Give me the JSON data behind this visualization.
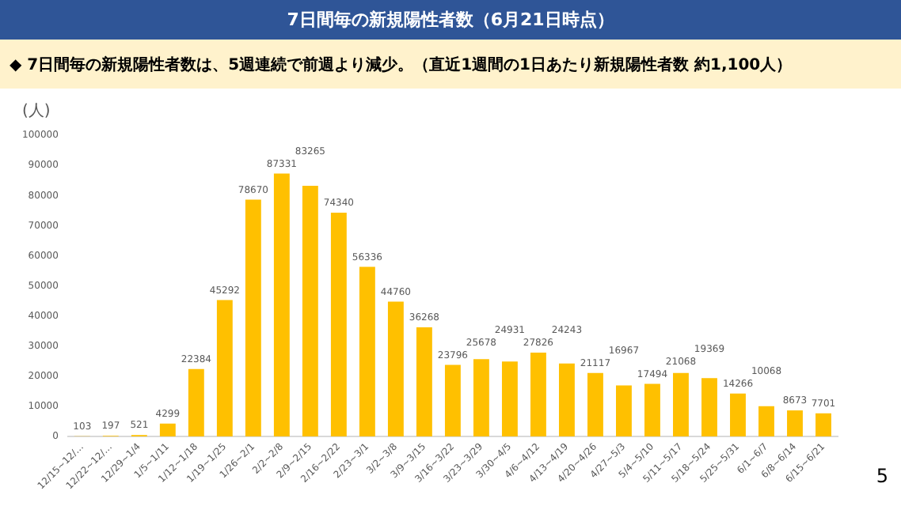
{
  "chart_data": {
    "type": "bar",
    "title": "7日間毎の新規陽性者数（6月21日時点）",
    "subtitle": "◆ 7日間毎の新規陽性者数は、5週連続で前週より減少。（直近1週間の1日あたり新規陽性者数 約1,100人）",
    "ylabel": "(人)",
    "annotations": [
      "5"
    ],
    "categories": [
      "12/15~12/…",
      "12/22~12/…",
      "12/29~1/4",
      "1/5~1/11",
      "1/12~1/18",
      "1/19~1/25",
      "1/26~2/1",
      "2/2~2/8",
      "2/9~2/15",
      "2/16~2/22",
      "2/23~3/1",
      "3/2~3/8",
      "3/9~3/15",
      "3/16~3/22",
      "3/23~3/29",
      "3/30~4/5",
      "4/6~4/12",
      "4/13~4/19",
      "4/20~4/26",
      "4/27~5/3",
      "5/4~5/10",
      "5/11~5/17",
      "5/18~5/24",
      "5/25~5/31",
      "6/1~6/7",
      "6/8~6/14",
      "6/15~6/21"
    ],
    "values": [
      103,
      197,
      521,
      4299,
      22384,
      45292,
      78670,
      87331,
      83265,
      74340,
      56336,
      44760,
      36268,
      23796,
      25678,
      24931,
      27826,
      24243,
      21117,
      16967,
      17494,
      21068,
      19369,
      14266,
      10068,
      8673,
      7701
    ],
    "color": "#ffc000",
    "ylim": [
      0,
      100000
    ],
    "yticks": [
      0,
      10000,
      20000,
      30000,
      40000,
      50000,
      60000,
      70000,
      80000,
      90000,
      100000
    ],
    "data_labels": true,
    "grid": false,
    "legend": false
  }
}
